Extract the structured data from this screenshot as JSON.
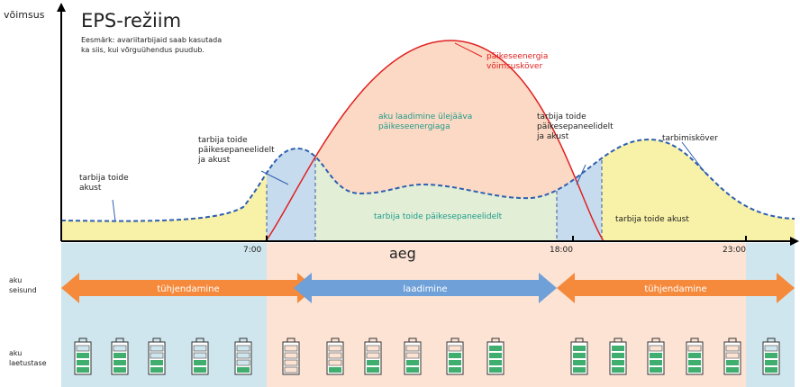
{
  "header": {
    "axis_label": "võimsus",
    "title": "EPS-režiim",
    "description": [
      "Eesmärk: avariitarbijaid saab kasutada",
      "ka siis, kui võrguühendus puudub."
    ]
  },
  "chart_labels": {
    "battery_left": [
      "tarbija toide",
      "akust"
    ],
    "mixed_left": [
      "tarbija toide",
      "päikesepaneelidelt",
      "ja akust"
    ],
    "charging": [
      "aku laadimine ülejääva",
      "päikeseenergiaga"
    ],
    "solar_supply": [
      "tarbija toide päikesepaneelidelt"
    ],
    "mixed_right": [
      "tarbija toide",
      "päikesepaneelidelt",
      "ja akust"
    ],
    "consumption_curve": [
      "tarbimisköver"
    ],
    "solar_curve": [
      "päikeseenergia",
      "võimsusköver"
    ],
    "battery_right": [
      "tarbija toide akust"
    ]
  },
  "x_axis": {
    "label": "aeg",
    "ticks": [
      "7:00",
      "18:00",
      "23:00"
    ]
  },
  "rows": {
    "state": {
      "label": [
        "aku",
        "seisund"
      ],
      "arrows": [
        "tühjendamine",
        "laadimine",
        "tühjendamine"
      ]
    },
    "level": {
      "label": [
        "aku",
        "laetustase"
      ]
    }
  }
}
